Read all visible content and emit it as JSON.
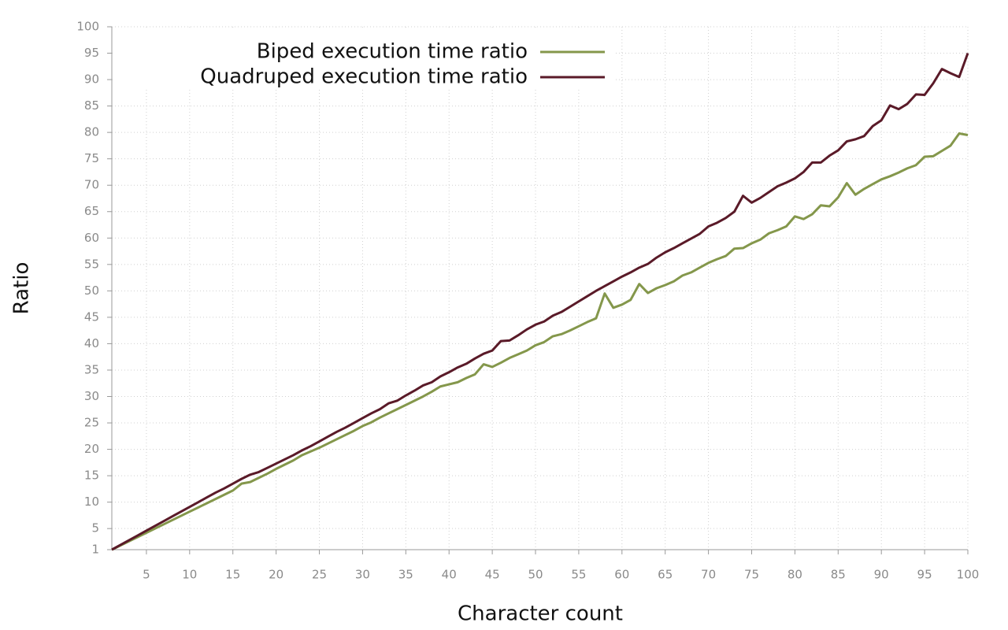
{
  "chart_data": {
    "type": "line",
    "x_label": "Character count",
    "y_label": "Ratio",
    "x": [
      1,
      2,
      3,
      4,
      5,
      6,
      7,
      8,
      9,
      10,
      11,
      12,
      13,
      14,
      15,
      16,
      17,
      18,
      19,
      20,
      21,
      22,
      23,
      24,
      25,
      26,
      27,
      28,
      29,
      30,
      31,
      32,
      33,
      34,
      35,
      36,
      37,
      38,
      39,
      40,
      41,
      42,
      43,
      44,
      45,
      46,
      47,
      48,
      49,
      50,
      51,
      52,
      53,
      54,
      55,
      56,
      57,
      58,
      59,
      60,
      61,
      62,
      63,
      64,
      65,
      66,
      67,
      68,
      69,
      70,
      71,
      72,
      73,
      74,
      75,
      76,
      77,
      78,
      79,
      80,
      81,
      82,
      83,
      84,
      85,
      86,
      87,
      88,
      89,
      90,
      91,
      92,
      93,
      94,
      95,
      96,
      97,
      98,
      99,
      100
    ],
    "series": [
      {
        "name": "Biped execution time ratio",
        "color": "#84974b",
        "values": [
          1,
          1.8,
          2.6,
          3.4,
          4.2,
          5,
          5.8,
          6.6,
          7.4,
          8.2,
          9,
          9.8,
          10.6,
          11.4,
          12.2,
          13.5,
          13.8,
          14.6,
          15.4,
          16.3,
          17.1,
          17.9,
          18.9,
          19.6,
          20.3,
          21.1,
          21.9,
          22.7,
          23.5,
          24.4,
          25.1,
          26,
          26.8,
          27.6,
          28.4,
          29.2,
          30,
          30.9,
          31.9,
          32.3,
          32.7,
          33.5,
          34.2,
          36.1,
          35.6,
          36.4,
          37.3,
          38,
          38.7,
          39.7,
          40.3,
          41.4,
          41.8,
          42.5,
          43.3,
          44.1,
          44.8,
          49.5,
          46.8,
          47.4,
          48.3,
          51.3,
          49.6,
          50.5,
          51.1,
          51.8,
          52.9,
          53.5,
          54.4,
          55.3,
          56,
          56.6,
          58,
          58.1,
          59,
          59.7,
          60.9,
          61.5,
          62.2,
          64.1,
          63.6,
          64.5,
          66.2,
          66,
          67.7,
          70.4,
          68.2,
          69.3,
          70.2,
          71.1,
          71.7,
          72.4,
          73.2,
          73.8,
          75.4,
          75.5,
          76.5,
          77.5,
          79.8,
          79.5
        ]
      },
      {
        "name": "Quadruped execution time ratio",
        "color": "#5a1a28",
        "values": [
          1,
          1.9,
          2.8,
          3.7,
          4.6,
          5.5,
          6.4,
          7.3,
          8.2,
          9.1,
          10,
          10.9,
          11.8,
          12.6,
          13.5,
          14.4,
          15.2,
          15.7,
          16.5,
          17.3,
          18.1,
          18.9,
          19.8,
          20.6,
          21.5,
          22.4,
          23.3,
          24.1,
          25,
          25.9,
          26.8,
          27.6,
          28.7,
          29.2,
          30.2,
          31.1,
          32.1,
          32.7,
          33.8,
          34.6,
          35.5,
          36.2,
          37.2,
          38.1,
          38.7,
          40.5,
          40.6,
          41.6,
          42.7,
          43.6,
          44.2,
          45.3,
          46,
          47,
          48,
          49,
          50,
          50.9,
          51.8,
          52.7,
          53.5,
          54.4,
          55.1,
          56.3,
          57.3,
          58.1,
          59,
          59.9,
          60.8,
          62.2,
          62.9,
          63.8,
          65,
          68,
          66.7,
          67.6,
          68.7,
          69.8,
          70.5,
          71.3,
          72.5,
          74.3,
          74.3,
          75.6,
          76.6,
          78.3,
          78.7,
          79.3,
          81.2,
          82.3,
          85.1,
          84.4,
          85.4,
          87.2,
          87.1,
          89.3,
          92,
          91.2,
          90.5,
          95
        ]
      }
    ],
    "xlim": [
      1,
      100
    ],
    "xticks": [
      5,
      10,
      15,
      20,
      25,
      30,
      35,
      40,
      45,
      50,
      55,
      60,
      65,
      70,
      75,
      80,
      85,
      90,
      95,
      100
    ],
    "ylim": [
      1,
      100
    ],
    "yticks": [
      1,
      5,
      10,
      15,
      20,
      25,
      30,
      35,
      40,
      45,
      50,
      55,
      60,
      65,
      70,
      75,
      80,
      85,
      90,
      95,
      100
    ],
    "grid": true,
    "legend": "top-left"
  }
}
